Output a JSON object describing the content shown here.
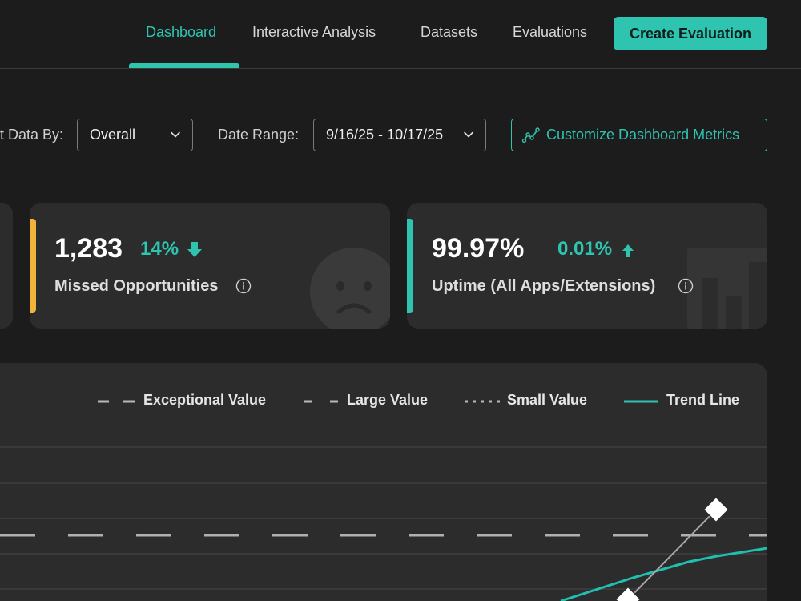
{
  "nav": {
    "tabs": [
      {
        "label": "Dashboard",
        "active": true
      },
      {
        "label": "Interactive Analysis",
        "active": false
      },
      {
        "label": "Datasets",
        "active": false
      },
      {
        "label": "Evaluations",
        "active": false
      }
    ],
    "create_button": "Create Evaluation"
  },
  "filters": {
    "sort_label": "t Data By:",
    "sort_value": "Overall",
    "date_label": "Date Range:",
    "date_value": "9/16/25 - 10/17/25",
    "customize_button": "Customize Dashboard Metrics",
    "customize_icon": "trend-line-icon"
  },
  "cards": [
    {
      "value": "1,283",
      "delta": "14%",
      "delta_direction": "down",
      "label": "Missed Opportunities",
      "accent_color": "#f2b33d",
      "background_icon": "sad-face-icon"
    },
    {
      "value": "99.97%",
      "delta": "0.01%",
      "delta_direction": "up",
      "label": "Uptime (All Apps/Extensions)",
      "accent_color": "#2ec4b0",
      "background_icon": "bar-chart-icon"
    }
  ],
  "colors": {
    "accent": "#2ec4b0",
    "background": "#1c1c1c",
    "card": "#2c2c2c"
  },
  "chart_data": {
    "type": "line",
    "legend": [
      {
        "name": "Exceptional Value",
        "style": "dashed"
      },
      {
        "name": "Large Value",
        "style": "dashed"
      },
      {
        "name": "Small Value",
        "style": "dotted"
      },
      {
        "name": "Trend Line",
        "style": "solid",
        "color": "#2ec4b0"
      }
    ],
    "legend_placement": "top-right",
    "grid": true
  }
}
